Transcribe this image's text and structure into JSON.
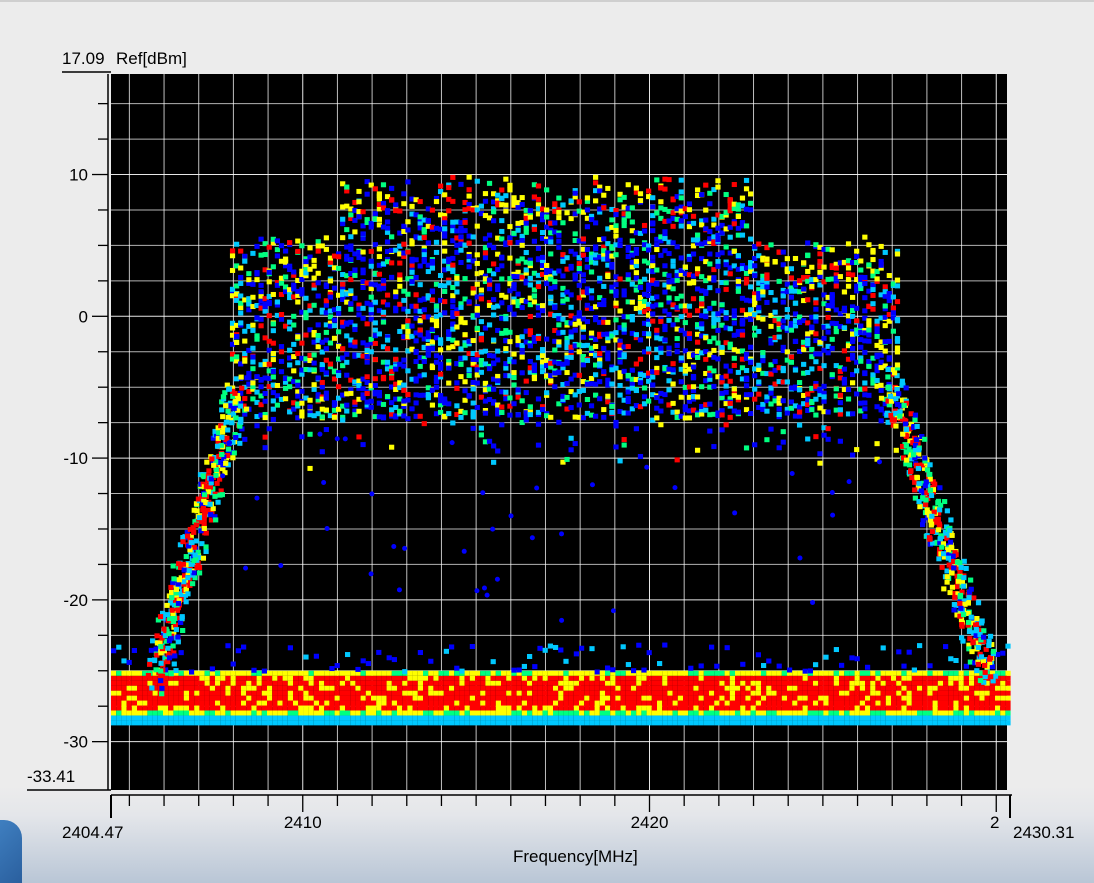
{
  "chart_data": {
    "type": "heatmap",
    "title": "",
    "ref_top_label": "17.09",
    "ref_bottom_label": "-33.41",
    "ylabel": "Ref[dBm]",
    "xlabel": "Frequency[MHz]",
    "x_start_label": "2404.47",
    "x_end_label": "2430.31",
    "x_partial_label": "2",
    "xlim": [
      2404.47,
      2430.31
    ],
    "ylim": [
      -33.41,
      17.09
    ],
    "y_ticks": [
      {
        "value": 10,
        "label": "10"
      },
      {
        "value": 0,
        "label": "0"
      },
      {
        "value": -10,
        "label": "-10"
      },
      {
        "value": -20,
        "label": "-20"
      },
      {
        "value": -30,
        "label": "-30"
      }
    ],
    "x_ticks": [
      {
        "value": 2410,
        "label": "2410"
      },
      {
        "value": 2420,
        "label": "2420"
      }
    ],
    "grid": true,
    "signal": {
      "center_mhz": 2417.5,
      "bandwidth_mhz": 20,
      "peak_dbm": 10,
      "noise_floor_dbm": -26.5
    },
    "colors": {
      "plot_bg": "#000000",
      "grid": "#ffffff",
      "density_low": "#0000ff",
      "density_mid": "#00c8ff",
      "density_midhigh": "#00ff80",
      "density_high": "#ffff00",
      "density_max": "#ff0000"
    }
  }
}
